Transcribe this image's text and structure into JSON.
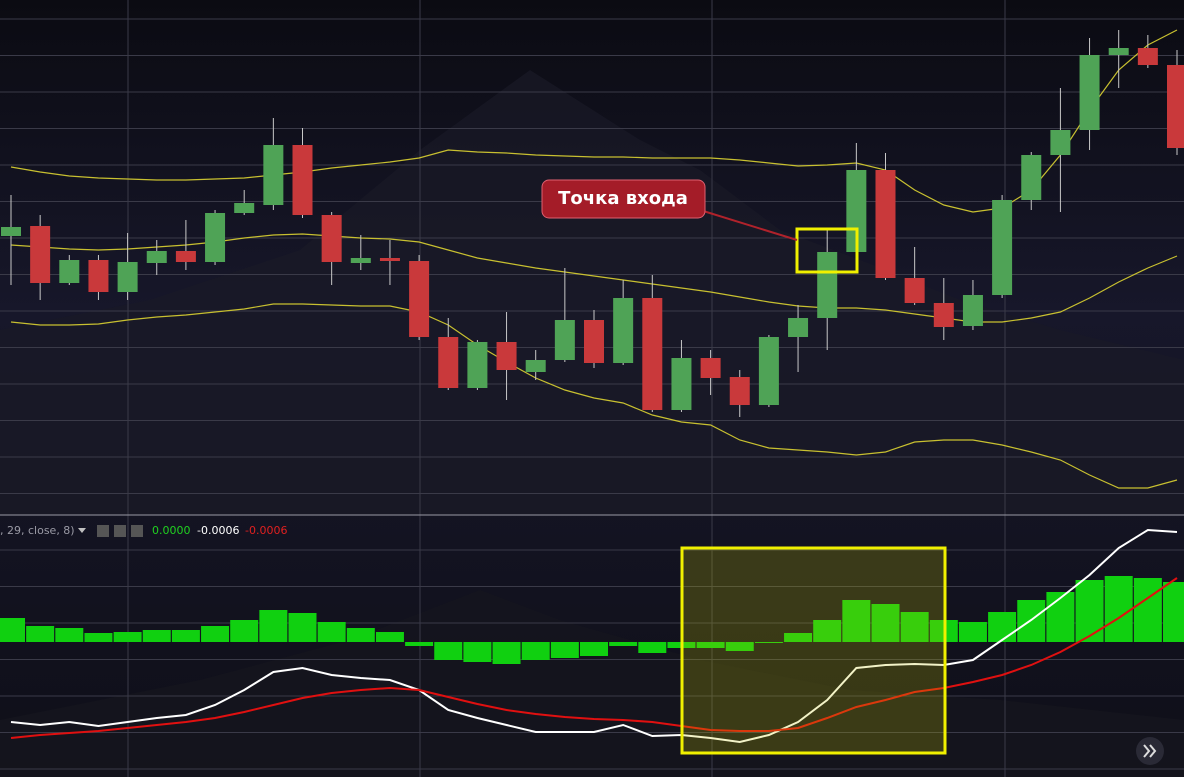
{
  "chart_data": [
    {
      "type": "candlestick",
      "annotation": "Точка входа",
      "ylim": [
        0,
        515
      ],
      "up_color": "#4fa356",
      "down_color": "#c9393b",
      "open": [
        279,
        289,
        232,
        255,
        223,
        252,
        264,
        253,
        302,
        310,
        370,
        300,
        252,
        257,
        254,
        178,
        127,
        173,
        143,
        155,
        195,
        152,
        217,
        105,
        157,
        138,
        110,
        178,
        197,
        263,
        345,
        237,
        212,
        189,
        220,
        315,
        360,
        385,
        460,
        467,
        450
      ],
      "high": [
        320,
        300,
        260,
        260,
        282,
        275,
        295,
        305,
        325,
        397,
        387,
        303,
        280,
        275,
        260,
        197,
        175,
        203,
        165,
        247,
        205,
        235,
        240,
        175,
        165,
        145,
        180,
        210,
        285,
        372,
        362,
        268,
        237,
        235,
        320,
        363,
        427,
        477,
        485,
        480,
        465
      ],
      "low": [
        230,
        215,
        230,
        215,
        215,
        240,
        245,
        250,
        300,
        305,
        297,
        230,
        245,
        230,
        175,
        125,
        125,
        115,
        135,
        153,
        147,
        150,
        103,
        103,
        120,
        98,
        108,
        143,
        165,
        257,
        235,
        210,
        175,
        185,
        217,
        305,
        303,
        365,
        427,
        447,
        360
      ],
      "close": [
        288,
        232,
        255,
        223,
        253,
        264,
        253,
        302,
        312,
        370,
        300,
        253,
        257,
        254,
        178,
        127,
        173,
        145,
        155,
        195,
        152,
        217,
        105,
        157,
        137,
        110,
        178,
        197,
        263,
        345,
        237,
        212,
        188,
        220,
        315,
        360,
        385,
        460,
        467,
        450,
        367
      ],
      "series": [
        {
          "color": "#c8c030",
          "values": [
            348,
            343,
            339,
            337,
            336,
            335,
            335,
            336,
            337,
            340,
            343,
            347,
            350,
            353,
            357,
            365,
            363,
            362,
            360,
            359,
            358,
            358,
            357,
            357,
            357,
            355,
            352,
            349,
            350,
            352,
            345,
            325,
            310,
            303,
            307,
            325,
            360,
            405,
            445,
            470,
            485
          ]
        },
        {
          "color": "#c8c030",
          "values": [
            270,
            268,
            266,
            265,
            266,
            268,
            270,
            273,
            277,
            280,
            281,
            279,
            277,
            276,
            273,
            265,
            257,
            252,
            247,
            243,
            239,
            235,
            231,
            227,
            223,
            218,
            213,
            209,
            207,
            207,
            205,
            201,
            197,
            193,
            193,
            197,
            203,
            217,
            233,
            247,
            259
          ]
        },
        {
          "color": "#c8c030",
          "values": [
            193,
            190,
            190,
            191,
            195,
            198,
            200,
            203,
            206,
            211,
            211,
            210,
            209,
            209,
            203,
            190,
            170,
            153,
            137,
            125,
            117,
            112,
            100,
            93,
            90,
            75,
            67,
            65,
            63,
            60,
            63,
            73,
            75,
            75,
            70,
            63,
            55,
            40,
            27,
            27,
            35
          ]
        }
      ]
    },
    {
      "type": "macd",
      "legend_text": ", 29, close, 8)",
      "legend_values": [
        "0.0000",
        "-0.0006",
        "-0.0006"
      ],
      "ylim": [
        -0.00135,
        0.00127
      ],
      "histogram_color": "#10d010",
      "histogram": [
        0.00024,
        0.00016,
        0.00014,
        9e-05,
        0.0001,
        0.00012,
        0.00012,
        0.00016,
        0.00022,
        0.00032,
        0.00029,
        0.0002,
        0.00014,
        0.0001,
        -4e-05,
        -0.00018,
        -0.0002,
        -0.00022,
        -0.00018,
        -0.00016,
        -0.00014,
        -4e-05,
        -0.00011,
        -6e-05,
        -6e-05,
        -9e-05,
        0.0,
        9e-05,
        0.00022,
        0.00042,
        0.00038,
        0.0003,
        0.00022,
        0.0002,
        0.0003,
        0.00042,
        0.0005,
        0.00062,
        0.00066,
        0.00064,
        0.0006
      ],
      "series": [
        {
          "color": "#ffffff",
          "values": [
            -0.0008,
            -0.00083,
            -0.0008,
            -0.00084,
            -0.0008,
            -0.00076,
            -0.00073,
            -0.00063,
            -0.00048,
            -0.0003,
            -0.00026,
            -0.00033,
            -0.00036,
            -0.00038,
            -0.00048,
            -0.00068,
            -0.00076,
            -0.00083,
            -0.0009,
            -0.0009,
            -0.0009,
            -0.00083,
            -0.00094,
            -0.00093,
            -0.00096,
            -0.001,
            -0.00093,
            -0.0008,
            -0.00058,
            -0.00026,
            -0.00023,
            -0.00022,
            -0.00023,
            -0.00018,
            2e-05,
            0.00022,
            0.00044,
            0.00067,
            0.00094,
            0.00112,
            0.0011
          ]
        },
        {
          "color": "#e01010",
          "values": [
            -0.00096,
            -0.00093,
            -0.00091,
            -0.00089,
            -0.00086,
            -0.00083,
            -0.0008,
            -0.00076,
            -0.0007,
            -0.00063,
            -0.00056,
            -0.00051,
            -0.00048,
            -0.00046,
            -0.00048,
            -0.00055,
            -0.00062,
            -0.00068,
            -0.00072,
            -0.00075,
            -0.00077,
            -0.00078,
            -0.0008,
            -0.00084,
            -0.00088,
            -0.00089,
            -0.00089,
            -0.00086,
            -0.00076,
            -0.00065,
            -0.00058,
            -0.0005,
            -0.00046,
            -0.0004,
            -0.00033,
            -0.00023,
            -0.0001,
            6e-05,
            0.00024,
            0.00044,
            0.00064
          ]
        }
      ]
    }
  ]
}
